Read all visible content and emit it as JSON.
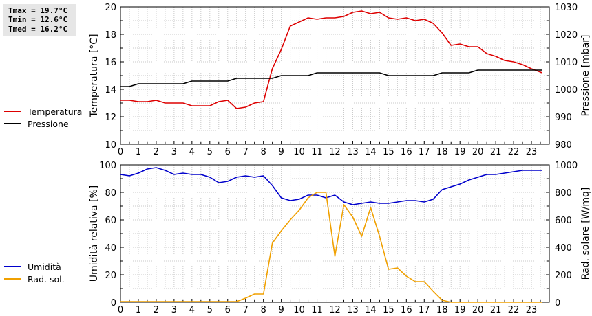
{
  "stats": {
    "tmax": "Tmax = 19.7°C",
    "tmin": "Tmin = 12.6°C",
    "tmed": "Tmed = 16.2°C"
  },
  "legend_top": [
    {
      "label": "Temperatura",
      "color": "#dd0000"
    },
    {
      "label": "Pressione",
      "color": "#000000"
    }
  ],
  "legend_bottom": [
    {
      "label": "Umidità",
      "color": "#0000cc"
    },
    {
      "label": "Rad. sol.",
      "color": "#f0a000"
    }
  ],
  "chart_data": [
    {
      "type": "line",
      "xlim": [
        0,
        24
      ],
      "xticks": [
        "0",
        "1",
        "2",
        "3",
        "4",
        "5",
        "6",
        "7",
        "8",
        "9",
        "10",
        "11",
        "12",
        "13",
        "14",
        "15",
        "16",
        "17",
        "18",
        "19",
        "20",
        "21",
        "22",
        "23"
      ],
      "ylabel": "Temperatura [°C]",
      "ylim": [
        10,
        20
      ],
      "yticks": [
        "10",
        "12",
        "14",
        "16",
        "18",
        "20"
      ],
      "y2label": "Pressione [mbar]",
      "y2lim": [
        980,
        1030
      ],
      "y2ticks": [
        "980",
        "990",
        "1000",
        "1010",
        "1020",
        "1030"
      ],
      "grid": true,
      "series": [
        {
          "name": "Temperatura",
          "axis": "left",
          "color": "#dd0000",
          "x": [
            0,
            0.5,
            1,
            1.5,
            2,
            2.5,
            3,
            3.5,
            4,
            4.5,
            5,
            5.5,
            6,
            6.5,
            7,
            7.5,
            8,
            8.5,
            9,
            9.5,
            10,
            10.5,
            11,
            11.5,
            12,
            12.5,
            13,
            13.5,
            14,
            14.5,
            15,
            15.5,
            16,
            16.5,
            17,
            17.5,
            18,
            18.5,
            19,
            19.5,
            20,
            20.5,
            21,
            21.5,
            22,
            22.5,
            23,
            23.6
          ],
          "y": [
            13.2,
            13.2,
            13.1,
            13.1,
            13.2,
            13.0,
            13.0,
            13.0,
            12.8,
            12.8,
            12.8,
            13.1,
            13.2,
            12.6,
            12.7,
            13.0,
            13.1,
            15.5,
            16.9,
            18.6,
            18.9,
            19.2,
            19.1,
            19.2,
            19.2,
            19.3,
            19.6,
            19.7,
            19.5,
            19.6,
            19.2,
            19.1,
            19.2,
            19.0,
            19.1,
            18.8,
            18.1,
            17.2,
            17.3,
            17.1,
            17.1,
            16.6,
            16.4,
            16.1,
            16.0,
            15.8,
            15.5,
            15.2
          ]
        },
        {
          "name": "Pressione",
          "axis": "right",
          "color": "#000000",
          "x": [
            0,
            0.5,
            1,
            1.5,
            2,
            2.5,
            3,
            3.5,
            4,
            4.5,
            5,
            5.5,
            6,
            6.5,
            7,
            7.5,
            8,
            8.5,
            9,
            9.5,
            10,
            10.5,
            11,
            11.5,
            12,
            12.5,
            13,
            13.5,
            14,
            14.5,
            15,
            15.5,
            16,
            16.5,
            17,
            17.5,
            18,
            18.5,
            19,
            19.5,
            20,
            20.5,
            21,
            21.5,
            22,
            22.5,
            23,
            23.6
          ],
          "y": [
            1001,
            1001,
            1002,
            1002,
            1002,
            1002,
            1002,
            1002,
            1003,
            1003,
            1003,
            1003,
            1003,
            1004,
            1004,
            1004,
            1004,
            1004,
            1005,
            1005,
            1005,
            1005,
            1006,
            1006,
            1006,
            1006,
            1006,
            1006,
            1006,
            1006,
            1005,
            1005,
            1005,
            1005,
            1005,
            1005,
            1006,
            1006,
            1006,
            1006,
            1007,
            1007,
            1007,
            1007,
            1007,
            1007,
            1007,
            1007
          ]
        }
      ]
    },
    {
      "type": "line",
      "xlim": [
        0,
        24
      ],
      "xticks": [
        "0",
        "1",
        "2",
        "3",
        "4",
        "5",
        "6",
        "7",
        "8",
        "9",
        "10",
        "11",
        "12",
        "13",
        "14",
        "15",
        "16",
        "17",
        "18",
        "19",
        "20",
        "21",
        "22",
        "23"
      ],
      "ylabel": "Umidità relativa [%]",
      "ylim": [
        0,
        100
      ],
      "yticks": [
        "0",
        "20",
        "40",
        "60",
        "80",
        "100"
      ],
      "y2label": "Rad. solare [W/mq]",
      "y2lim": [
        0,
        1000
      ],
      "y2ticks": [
        "0",
        "200",
        "400",
        "600",
        "800",
        "1000"
      ],
      "grid": true,
      "series": [
        {
          "name": "Umidità",
          "axis": "left",
          "color": "#0000cc",
          "x": [
            0,
            0.5,
            1,
            1.5,
            2,
            2.5,
            3,
            3.5,
            4,
            4.5,
            5,
            5.5,
            6,
            6.5,
            7,
            7.5,
            8,
            8.5,
            9,
            9.5,
            10,
            10.5,
            11,
            11.5,
            12,
            12.5,
            13,
            13.5,
            14,
            14.5,
            15,
            15.5,
            16,
            16.5,
            17,
            17.5,
            18,
            18.5,
            19,
            19.5,
            20,
            20.5,
            21,
            21.5,
            22,
            22.5,
            23,
            23.6
          ],
          "y": [
            93,
            92,
            94,
            97,
            98,
            96,
            93,
            94,
            93,
            93,
            91,
            87,
            88,
            91,
            92,
            91,
            92,
            85,
            76,
            74,
            75,
            78,
            78,
            76,
            78,
            73,
            71,
            72,
            73,
            72,
            72,
            73,
            74,
            74,
            73,
            75,
            82,
            84,
            86,
            89,
            91,
            93,
            93,
            94,
            95,
            96,
            96,
            96
          ]
        },
        {
          "name": "Rad. sol.",
          "axis": "right",
          "color": "#f0a000",
          "x": [
            0,
            0.5,
            1,
            1.5,
            2,
            2.5,
            3,
            3.5,
            4,
            4.5,
            5,
            5.5,
            6,
            6.5,
            7,
            7.5,
            8,
            8.5,
            9,
            9.5,
            10,
            10.5,
            11,
            11.5,
            12,
            12.5,
            13,
            13.5,
            14,
            14.5,
            15,
            15.5,
            16,
            16.5,
            17,
            17.5,
            18,
            18.5,
            19,
            19.5,
            20,
            20.5,
            21,
            21.5,
            22,
            22.5,
            23,
            23.6
          ],
          "y": [
            5,
            5,
            5,
            5,
            5,
            5,
            5,
            5,
            5,
            5,
            5,
            5,
            5,
            5,
            30,
            60,
            60,
            430,
            520,
            600,
            670,
            760,
            800,
            800,
            335,
            710,
            620,
            480,
            690,
            480,
            240,
            250,
            190,
            150,
            150,
            80,
            15,
            0,
            0,
            0,
            0,
            0,
            0,
            0,
            0,
            0,
            0,
            0
          ]
        }
      ]
    }
  ]
}
